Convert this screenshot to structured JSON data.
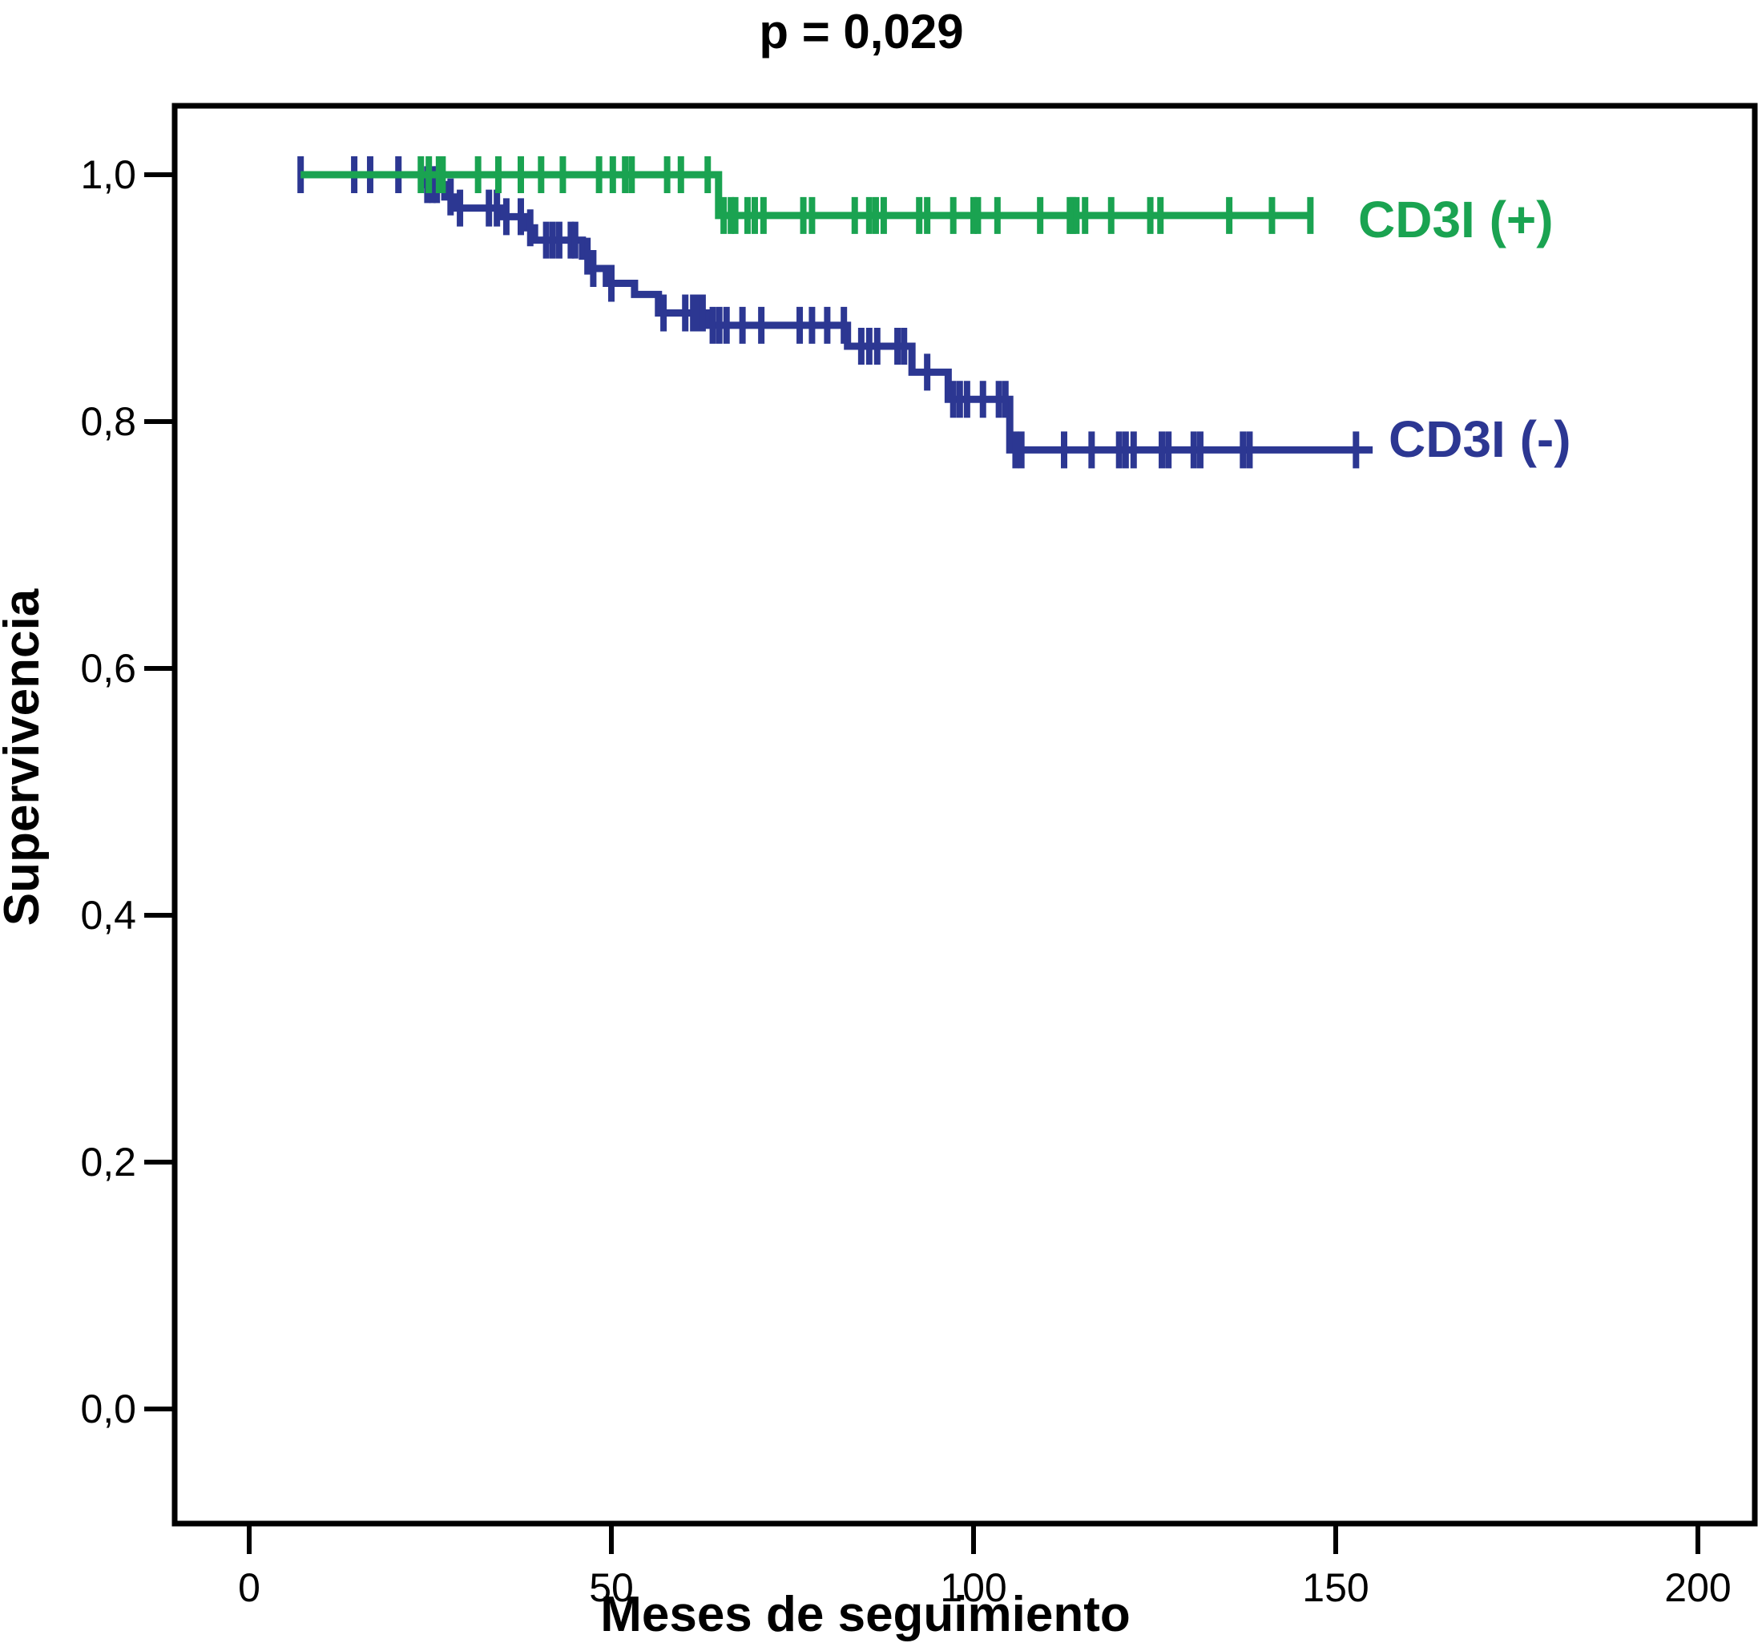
{
  "chart_data": {
    "type": "line",
    "subtype": "kaplan-meier-step",
    "title": "p = 0,029",
    "xlabel": "Meses de seguimiento",
    "ylabel": "Supervivencia",
    "grid": false,
    "legend_position": "inline-right-of-curves",
    "background_color": "#ffffff",
    "axis_color": "#000000",
    "xlim": [
      -10.3,
      207.9
    ],
    "ylim": [
      -0.093,
      1.056
    ],
    "x_ticks": [
      {
        "value": 0,
        "label": "0"
      },
      {
        "value": 50,
        "label": "50"
      },
      {
        "value": 100,
        "label": "100"
      },
      {
        "value": 150,
        "label": "150"
      },
      {
        "value": 200,
        "label": "200"
      }
    ],
    "y_ticks": [
      {
        "value": 1.0,
        "label": "1,0"
      },
      {
        "value": 0.8,
        "label": "0,8"
      },
      {
        "value": 0.6,
        "label": "0,6"
      },
      {
        "value": 0.4,
        "label": "0,4"
      },
      {
        "value": 0.2,
        "label": "0,2"
      },
      {
        "value": 0.0,
        "label": "0,0"
      }
    ],
    "series": [
      {
        "id": "cd3i-minus",
        "name": "CD3I (-)",
        "label": "CD3I (-)",
        "color": "#2C3792",
        "steps": [
          [
            7.1,
            1.0
          ],
          [
            24.0,
            0.992
          ],
          [
            27.0,
            0.982
          ],
          [
            28.3,
            0.973
          ],
          [
            34.7,
            0.966
          ],
          [
            38.3,
            0.957
          ],
          [
            39.4,
            0.947
          ],
          [
            46.0,
            0.934
          ],
          [
            47.2,
            0.924
          ],
          [
            49.3,
            0.912
          ],
          [
            53.2,
            0.903
          ],
          [
            56.5,
            0.888
          ],
          [
            63.2,
            0.878
          ],
          [
            82.6,
            0.861
          ],
          [
            91.5,
            0.84
          ],
          [
            96.5,
            0.818
          ],
          [
            105.0,
            0.777
          ]
        ],
        "end_x": 155.1,
        "censors": [
          [
            7.1,
            1.0
          ],
          [
            14.5,
            1.0
          ],
          [
            16.7,
            1.0
          ],
          [
            20.6,
            1.0
          ],
          [
            24.6,
            0.992
          ],
          [
            25.3,
            0.992
          ],
          [
            25.9,
            0.992
          ],
          [
            27.8,
            0.982
          ],
          [
            29.1,
            0.973
          ],
          [
            33.1,
            0.973
          ],
          [
            34.2,
            0.973
          ],
          [
            35.5,
            0.966
          ],
          [
            37.5,
            0.966
          ],
          [
            38.8,
            0.957
          ],
          [
            41.0,
            0.947
          ],
          [
            41.9,
            0.947
          ],
          [
            42.8,
            0.947
          ],
          [
            44.4,
            0.947
          ],
          [
            45.0,
            0.947
          ],
          [
            46.7,
            0.934
          ],
          [
            47.5,
            0.924
          ],
          [
            50.0,
            0.912
          ],
          [
            57.2,
            0.888
          ],
          [
            60.2,
            0.888
          ],
          [
            61.3,
            0.888
          ],
          [
            62.1,
            0.888
          ],
          [
            62.6,
            0.888
          ],
          [
            64.0,
            0.878
          ],
          [
            64.9,
            0.878
          ],
          [
            65.9,
            0.878
          ],
          [
            68.1,
            0.878
          ],
          [
            70.7,
            0.878
          ],
          [
            76.0,
            0.878
          ],
          [
            77.7,
            0.878
          ],
          [
            79.8,
            0.878
          ],
          [
            82.1,
            0.878
          ],
          [
            84.5,
            0.861
          ],
          [
            85.6,
            0.861
          ],
          [
            86.7,
            0.861
          ],
          [
            89.5,
            0.861
          ],
          [
            90.4,
            0.861
          ],
          [
            93.6,
            0.84
          ],
          [
            97.2,
            0.818
          ],
          [
            98.1,
            0.818
          ],
          [
            99.1,
            0.818
          ],
          [
            101.3,
            0.818
          ],
          [
            103.5,
            0.818
          ],
          [
            104.4,
            0.818
          ],
          [
            105.8,
            0.777
          ],
          [
            106.6,
            0.777
          ],
          [
            112.5,
            0.777
          ],
          [
            116.3,
            0.777
          ],
          [
            120.1,
            0.777
          ],
          [
            121.0,
            0.777
          ],
          [
            122.1,
            0.777
          ],
          [
            126.0,
            0.777
          ],
          [
            126.9,
            0.777
          ],
          [
            130.4,
            0.777
          ],
          [
            131.3,
            0.777
          ],
          [
            137.2,
            0.777
          ],
          [
            138.1,
            0.777
          ],
          [
            152.8,
            0.777
          ]
        ]
      },
      {
        "id": "cd3i-plus",
        "name": "CD3I (+)",
        "label": "CD3I (+)",
        "color": "#1AA351",
        "steps": [
          [
            7.1,
            1.0
          ],
          [
            64.8,
            0.967
          ]
        ],
        "end_x": 146.9,
        "censors": [
          [
            23.7,
            1.0
          ],
          [
            24.8,
            1.0
          ],
          [
            26.2,
            1.0
          ],
          [
            26.7,
            1.0
          ],
          [
            31.6,
            1.0
          ],
          [
            34.4,
            1.0
          ],
          [
            37.5,
            1.0
          ],
          [
            40.3,
            1.0
          ],
          [
            43.3,
            1.0
          ],
          [
            48.3,
            1.0
          ],
          [
            50.2,
            1.0
          ],
          [
            51.9,
            1.0
          ],
          [
            52.8,
            1.0
          ],
          [
            57.7,
            1.0
          ],
          [
            59.6,
            1.0
          ],
          [
            63.3,
            1.0
          ],
          [
            65.5,
            0.967
          ],
          [
            66.5,
            0.967
          ],
          [
            67.1,
            0.967
          ],
          [
            68.8,
            0.967
          ],
          [
            69.8,
            0.967
          ],
          [
            71.0,
            0.967
          ],
          [
            76.5,
            0.967
          ],
          [
            77.7,
            0.967
          ],
          [
            83.6,
            0.967
          ],
          [
            85.6,
            0.967
          ],
          [
            86.5,
            0.967
          ],
          [
            87.6,
            0.967
          ],
          [
            92.5,
            0.967
          ],
          [
            93.6,
            0.967
          ],
          [
            97.2,
            0.967
          ],
          [
            100.0,
            0.967
          ],
          [
            100.6,
            0.967
          ],
          [
            103.3,
            0.967
          ],
          [
            109.2,
            0.967
          ],
          [
            113.3,
            0.967
          ],
          [
            113.7,
            0.967
          ],
          [
            114.2,
            0.967
          ],
          [
            115.4,
            0.967
          ],
          [
            119.0,
            0.967
          ],
          [
            124.4,
            0.967
          ],
          [
            125.8,
            0.967
          ],
          [
            135.3,
            0.967
          ],
          [
            141.2,
            0.967
          ],
          [
            146.5,
            0.967
          ]
        ]
      }
    ]
  }
}
